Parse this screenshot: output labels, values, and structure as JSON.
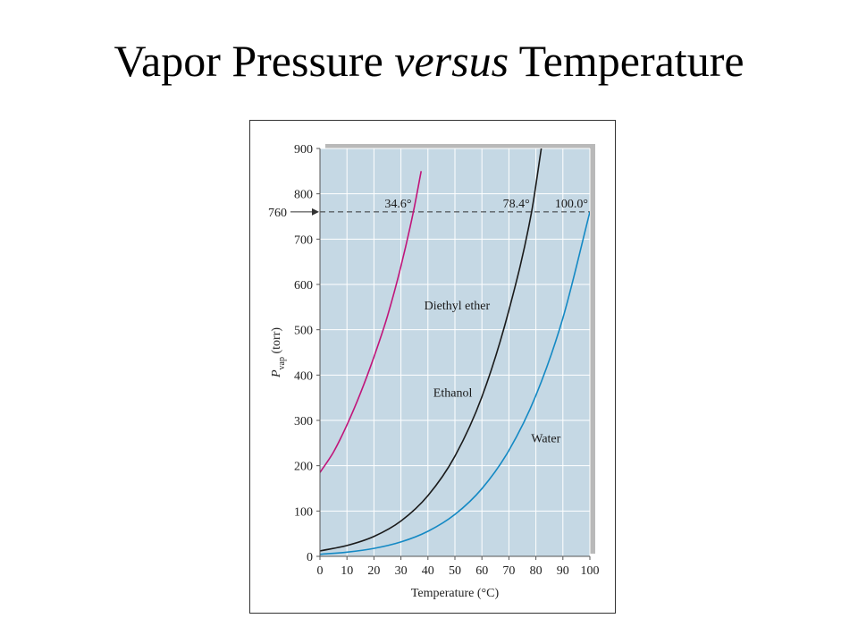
{
  "title": {
    "part1": "Vapor Pressure ",
    "part2": "versus",
    "part3": " Temperature"
  },
  "chart_data": {
    "type": "line",
    "xlabel": "Temperature (°C)",
    "ylabel": {
      "main": "P",
      "sub": "vap",
      "unit": " (torr)"
    },
    "xlim": [
      0,
      100
    ],
    "ylim": [
      0,
      900
    ],
    "x_ticks": [
      0,
      10,
      20,
      30,
      40,
      50,
      60,
      70,
      80,
      90,
      100
    ],
    "y_ticks": [
      0,
      100,
      200,
      300,
      400,
      500,
      600,
      700,
      800,
      900
    ],
    "grid": true,
    "colors": {
      "plot_background": "#c5d8e4",
      "grid": "#ffffff",
      "diethyl_ether": "#c0157a",
      "ethanol": "#1a1a1a",
      "water": "#1489c4",
      "reference_line": "#333333"
    },
    "reference_line": {
      "value": 760,
      "label": "760"
    },
    "boiling_points": [
      {
        "series": "Diethyl ether",
        "x": 34.6,
        "label": "34.6°"
      },
      {
        "series": "Ethanol",
        "x": 78.4,
        "label": "78.4°"
      },
      {
        "series": "Water",
        "x": 100.0,
        "label": "100.0°"
      }
    ],
    "series": [
      {
        "name": "Diethyl ether",
        "x": [
          0,
          5,
          10,
          15,
          20,
          25,
          30,
          34.6,
          37.5
        ],
        "y": [
          185,
          230,
          290,
          360,
          440,
          530,
          640,
          760,
          850
        ]
      },
      {
        "name": "Ethanol",
        "x": [
          0,
          10,
          20,
          30,
          40,
          50,
          60,
          70,
          78.4,
          82
        ],
        "y": [
          12,
          24,
          44,
          78,
          134,
          221,
          352,
          543,
          760,
          900
        ]
      },
      {
        "name": "Water",
        "x": [
          0,
          10,
          20,
          30,
          40,
          50,
          60,
          70,
          80,
          90,
          100
        ],
        "y": [
          4.6,
          9.2,
          17.5,
          31.8,
          55.3,
          92.5,
          149.4,
          233.7,
          355.1,
          525.8,
          760
        ]
      }
    ]
  }
}
